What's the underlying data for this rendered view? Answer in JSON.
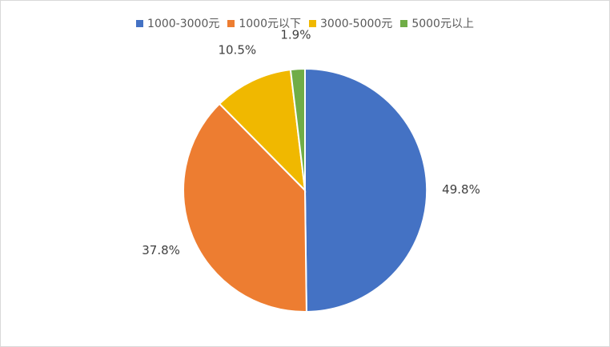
{
  "chart_data": {
    "type": "pie",
    "categories": [
      "1000-3000元",
      "1000元以下",
      "3000-5000元",
      "5000元以上"
    ],
    "values": [
      49.8,
      37.8,
      10.5,
      1.9
    ],
    "labels": [
      "49.8%",
      "37.8%",
      "10.5%",
      "1.9%"
    ],
    "colors": [
      "#4472c4",
      "#ed7d31",
      "#f0b800",
      "#70ad47"
    ],
    "legend_position": "top"
  }
}
